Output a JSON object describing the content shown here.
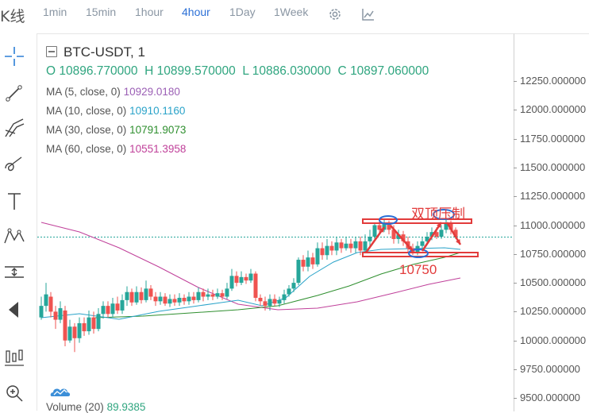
{
  "topbar": {
    "partial_label": "K线",
    "timeframes": [
      {
        "label": "1min",
        "active": false
      },
      {
        "label": "15min",
        "active": false
      },
      {
        "label": "1hour",
        "active": false
      },
      {
        "label": "4hour",
        "active": true
      },
      {
        "label": "1Day",
        "active": false
      },
      {
        "label": "1Week",
        "active": false
      }
    ],
    "icons": [
      "settings-gear-icon",
      "indicator-chart-icon"
    ]
  },
  "toolbar": {
    "tools": [
      "crosshair-icon",
      "trend-line-icon",
      "pitchfork-icon",
      "brush-icon",
      "text-icon",
      "pattern-icon",
      "measure-icon",
      "back-arrow-icon",
      "hide-icons-icon",
      "zoom-in-icon"
    ]
  },
  "legend": {
    "symbol": "BTC-USDT, 1",
    "ohlc": {
      "o_label": "O",
      "o": "10896.770000",
      "h_label": "H",
      "h": "10899.570000",
      "l_label": "L",
      "l": "10886.030000",
      "c_label": "C",
      "c": "10897.060000"
    },
    "ma": [
      {
        "label": "MA (5, close, 0)",
        "value": "10929.0180",
        "color": "#9b5fb5"
      },
      {
        "label": "MA (10, close, 0)",
        "value": "10910.1160",
        "color": "#2aa3c9"
      },
      {
        "label": "MA (30, close, 0)",
        "value": "10791.9073",
        "color": "#2f8f2f"
      },
      {
        "label": "MA (60, close, 0)",
        "value": "10551.3958",
        "color": "#c0409a"
      }
    ],
    "volume_label": "Volume (20)",
    "volume_value": "89.9385"
  },
  "price_axis": {
    "ticks": [
      "12250.000000",
      "12000.000000",
      "11750.000000",
      "11500.000000",
      "11250.000000",
      "11000.000000",
      "10750.000000",
      "10500.000000",
      "10250.000000",
      "10000.000000",
      "9750.000000",
      "9500.000000"
    ]
  },
  "annotations": {
    "pattern_label": "双顶压制",
    "support_label": "10750"
  },
  "colors": {
    "up": "#26a69a",
    "down": "#ef5350",
    "annotation": "#e23b3b",
    "ellipse": "#2b6fd6",
    "current_price_line": "#26a69a"
  }
}
